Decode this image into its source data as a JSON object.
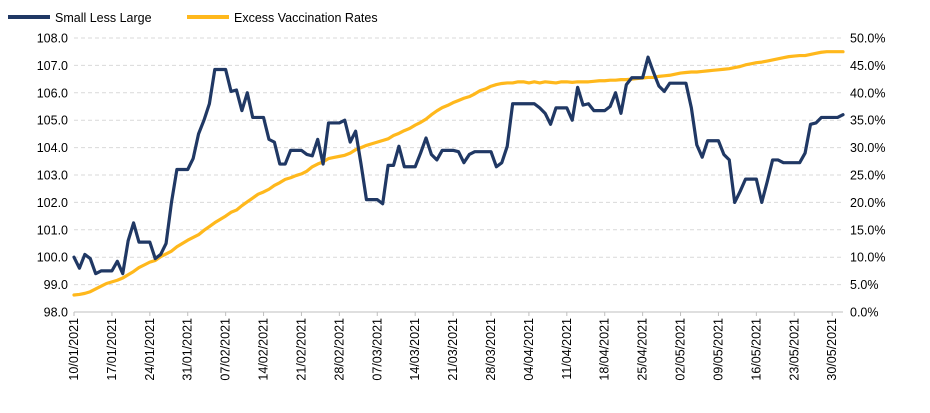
{
  "chart_data": {
    "type": "line",
    "legend": {
      "position": "top-left"
    },
    "grid": {
      "horizontal": true,
      "vertical": false
    },
    "y_left": {
      "min": 98.0,
      "max": 108.0,
      "step": 1.0,
      "ticks": [
        "98.0",
        "99.0",
        "100.0",
        "101.0",
        "102.0",
        "103.0",
        "104.0",
        "105.0",
        "106.0",
        "107.0",
        "108.0"
      ]
    },
    "y_right": {
      "min": 0.0,
      "max": 50.0,
      "step": 5.0,
      "ticks": [
        "0.0%",
        "5.0%",
        "10.0%",
        "15.0%",
        "20.0%",
        "25.0%",
        "30.0%",
        "35.0%",
        "40.0%",
        "45.0%",
        "50.0%"
      ]
    },
    "x_ticks": [
      "10/01/2021",
      "17/01/2021",
      "24/01/2021",
      "31/01/2021",
      "07/02/2021",
      "14/02/2021",
      "21/02/2021",
      "28/02/2021",
      "07/03/2021",
      "14/03/2021",
      "21/03/2021",
      "28/03/2021",
      "04/04/2021",
      "11/04/2021",
      "18/04/2021",
      "25/04/2021",
      "02/05/2021",
      "09/05/2021",
      "16/05/2021",
      "23/05/2021",
      "30/05/2021"
    ],
    "x_start": "10/01/2021",
    "x_end": "31/05/2021",
    "series": [
      {
        "name": "Small Less Large",
        "axis": "left",
        "color": "#203864",
        "values": [
          100.0,
          99.6,
          100.1,
          99.95,
          99.4,
          99.5,
          99.5,
          99.5,
          99.85,
          99.4,
          100.6,
          101.25,
          100.55,
          100.55,
          100.55,
          99.95,
          100.1,
          100.5,
          102.0,
          103.2,
          103.2,
          103.2,
          103.6,
          104.5,
          105.0,
          105.6,
          106.85,
          106.85,
          106.85,
          106.05,
          106.1,
          105.35,
          106.0,
          105.1,
          105.1,
          105.1,
          104.3,
          104.2,
          103.4,
          103.4,
          103.9,
          103.9,
          103.9,
          103.75,
          103.7,
          104.3,
          103.4,
          104.9,
          104.9,
          104.9,
          105.0,
          104.2,
          104.6,
          103.4,
          102.1,
          102.1,
          102.1,
          101.95,
          103.35,
          103.35,
          104.05,
          103.3,
          103.3,
          103.3,
          103.8,
          104.35,
          103.75,
          103.55,
          103.9,
          103.9,
          103.9,
          103.85,
          103.45,
          103.75,
          103.85,
          103.85,
          103.85,
          103.85,
          103.3,
          103.45,
          104.05,
          105.6,
          105.6,
          105.6,
          105.6,
          105.6,
          105.45,
          105.25,
          104.85,
          105.45,
          105.45,
          105.45,
          105.0,
          106.2,
          105.55,
          105.6,
          105.35,
          105.35,
          105.35,
          105.5,
          106.0,
          105.25,
          106.3,
          106.55,
          106.55,
          106.55,
          107.3,
          106.75,
          106.25,
          106.05,
          106.35,
          106.35,
          106.35,
          106.35,
          105.45,
          104.1,
          103.65,
          104.25,
          104.25,
          104.25,
          103.75,
          103.55,
          102.0,
          102.4,
          102.85,
          102.85,
          102.85,
          102.0,
          102.75,
          103.55,
          103.55,
          103.45,
          103.45,
          103.45,
          103.45,
          103.8,
          104.85,
          104.9,
          105.1,
          105.1,
          105.1,
          105.1,
          105.2
        ]
      },
      {
        "name": "Excess Vaccination Rates",
        "axis": "right",
        "color": "#FFB81C",
        "values": [
          3.1,
          3.2,
          3.4,
          3.7,
          4.2,
          4.7,
          5.2,
          5.5,
          5.8,
          6.2,
          6.8,
          7.4,
          8.1,
          8.6,
          9.1,
          9.4,
          10.1,
          10.6,
          11.1,
          11.9,
          12.5,
          13.1,
          13.6,
          14.1,
          14.9,
          15.6,
          16.3,
          16.9,
          17.5,
          18.2,
          18.6,
          19.4,
          20.1,
          20.8,
          21.5,
          21.9,
          22.4,
          23.1,
          23.6,
          24.2,
          24.5,
          24.9,
          25.2,
          25.7,
          26.5,
          27.0,
          27.4,
          28.0,
          28.2,
          28.4,
          28.6,
          29.0,
          29.6,
          30.0,
          30.4,
          30.7,
          31.0,
          31.3,
          31.6,
          32.2,
          32.6,
          33.1,
          33.5,
          34.1,
          34.6,
          35.2,
          36.0,
          36.7,
          37.3,
          37.7,
          38.2,
          38.6,
          39.0,
          39.3,
          39.8,
          40.4,
          40.7,
          41.2,
          41.5,
          41.7,
          41.8,
          41.8,
          42.0,
          42.0,
          41.8,
          42.0,
          41.8,
          42.0,
          41.9,
          41.8,
          42.0,
          42.0,
          41.9,
          42.0,
          42.0,
          42.0,
          42.1,
          42.2,
          42.2,
          42.3,
          42.3,
          42.4,
          42.4,
          42.5,
          42.6,
          42.7,
          42.8,
          42.8,
          43.0,
          43.1,
          43.2,
          43.4,
          43.6,
          43.7,
          43.8,
          43.8,
          43.9,
          44.0,
          44.1,
          44.2,
          44.3,
          44.4,
          44.6,
          44.8,
          45.1,
          45.3,
          45.5,
          45.6,
          45.8,
          46.0,
          46.2,
          46.4,
          46.6,
          46.7,
          46.8,
          46.8,
          47.0,
          47.2,
          47.4,
          47.5,
          47.5,
          47.5,
          47.5
        ]
      }
    ]
  }
}
